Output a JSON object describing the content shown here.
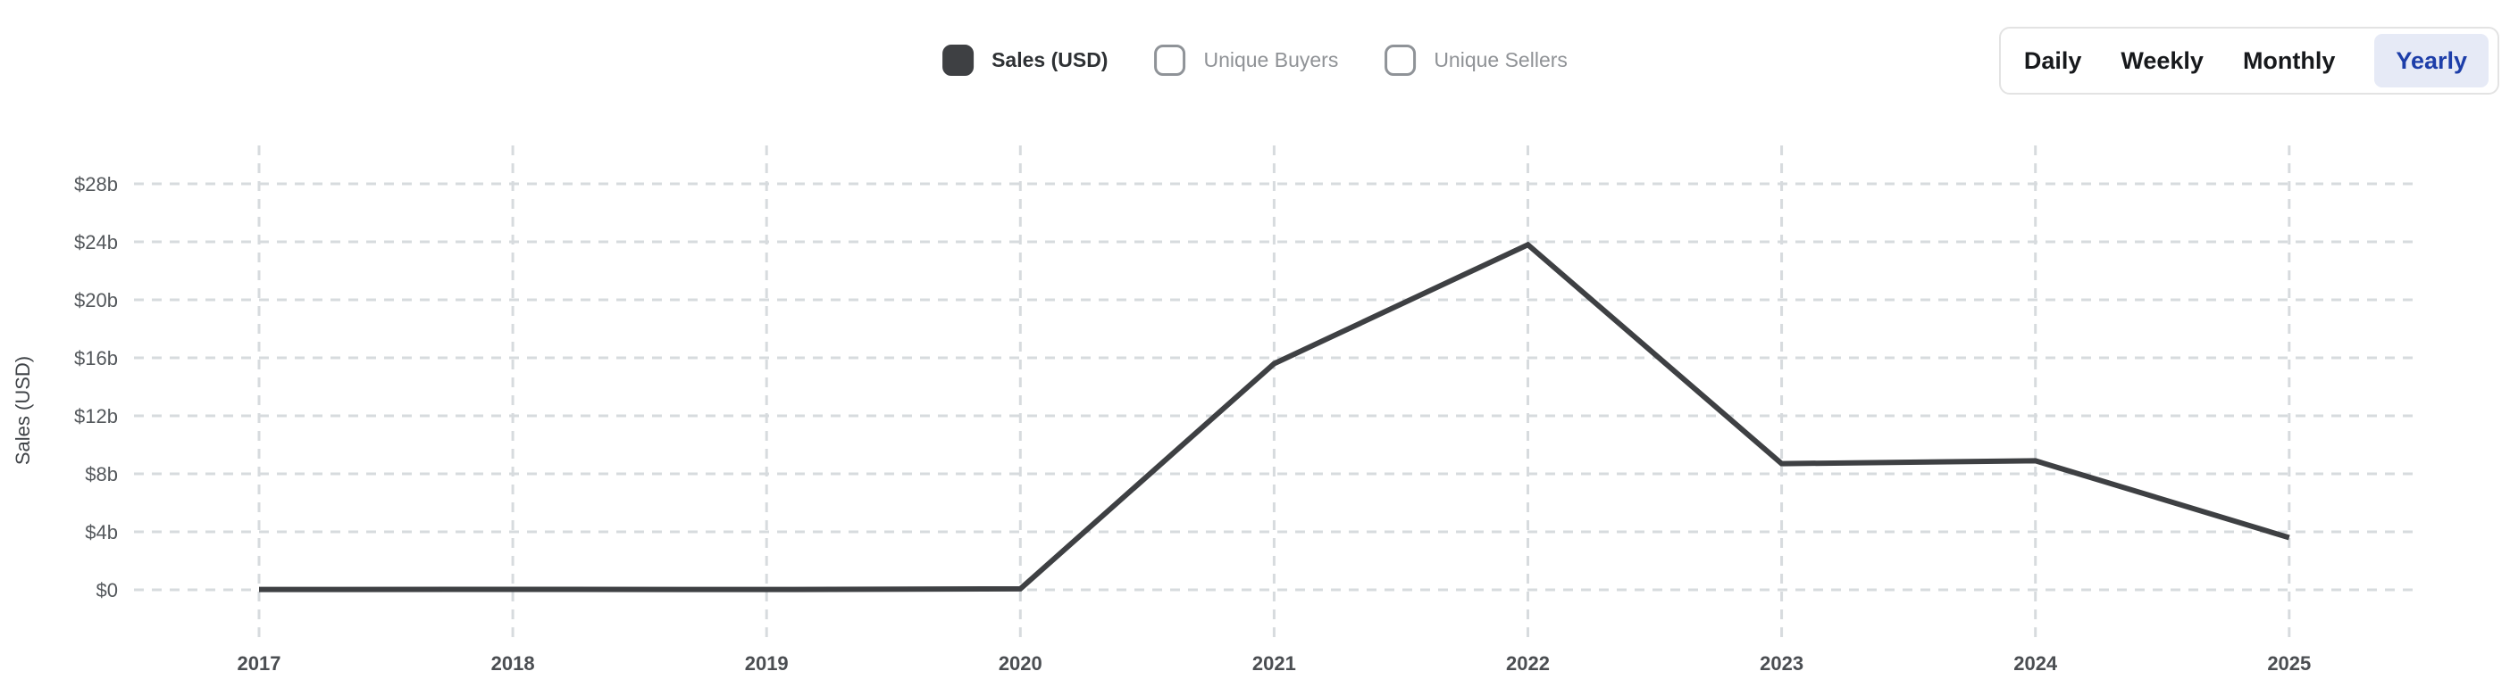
{
  "legend": {
    "items": [
      {
        "label": "Sales (USD)",
        "checked": true
      },
      {
        "label": "Unique Buyers",
        "checked": false
      },
      {
        "label": "Unique Sellers",
        "checked": false
      }
    ]
  },
  "range_selector": {
    "options": [
      "Daily",
      "Weekly",
      "Monthly",
      "Yearly"
    ],
    "selected": "Yearly"
  },
  "chart_data": {
    "type": "line",
    "title": "",
    "xlabel": "",
    "ylabel": "Sales (USD)",
    "x": [
      2017,
      2018,
      2019,
      2020,
      2021,
      2022,
      2023,
      2024,
      2025
    ],
    "series": [
      {
        "name": "Sales (USD)",
        "unit": "billions USD",
        "values": [
          0.02,
          0.03,
          0.02,
          0.07,
          15.6,
          23.8,
          8.7,
          8.9,
          3.6
        ]
      }
    ],
    "y_ticks": [
      "$0",
      "$4b",
      "$8b",
      "$12b",
      "$16b",
      "$20b",
      "$24b",
      "$28b"
    ],
    "y_tick_values": [
      0,
      4,
      8,
      12,
      16,
      20,
      24,
      28
    ],
    "ylim": [
      0,
      30.6
    ],
    "grid": "dashed",
    "legend_position": "top-center",
    "colors": {
      "line": "#3e4043",
      "grid": "#d7dbde",
      "active_tab": "#1d3ea9",
      "active_tab_bg": "#e6eaf6"
    }
  }
}
